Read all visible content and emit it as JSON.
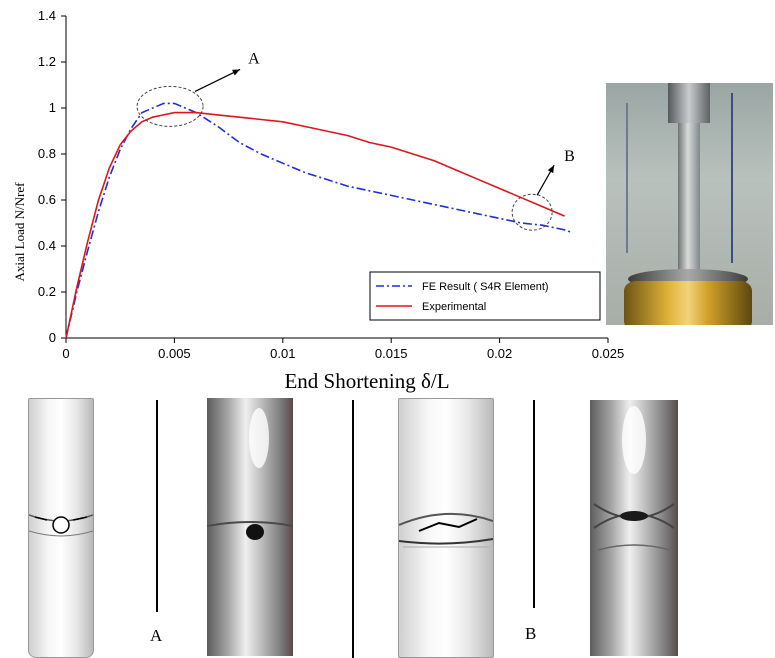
{
  "chart_data": {
    "type": "line",
    "title": "",
    "xlabel": "End Shortening δ/L",
    "ylabel": "Axial Load N/Nref",
    "xlim": [
      0,
      0.025
    ],
    "ylim": [
      0,
      1.4
    ],
    "x_ticks": [
      "0",
      "0.005",
      "0.01",
      "0.015",
      "0.02",
      "0.025"
    ],
    "y_ticks": [
      "0",
      "0.2",
      "0.4",
      "0.6",
      "0.8",
      "1",
      "1.2",
      "1.4"
    ],
    "grid": false,
    "legend_position": "bottom-right",
    "series": [
      {
        "name": "FE Result ( S4R Element)",
        "color": "#1f2fd8",
        "style": "dash-dot",
        "points": [
          [
            0,
            0
          ],
          [
            0.0005,
            0.2
          ],
          [
            0.001,
            0.38
          ],
          [
            0.0015,
            0.55
          ],
          [
            0.002,
            0.7
          ],
          [
            0.0025,
            0.82
          ],
          [
            0.003,
            0.91
          ],
          [
            0.0035,
            0.98
          ],
          [
            0.004,
            1.0
          ],
          [
            0.0045,
            1.02
          ],
          [
            0.005,
            1.02
          ],
          [
            0.0055,
            1.0
          ],
          [
            0.006,
            0.98
          ],
          [
            0.007,
            0.92
          ],
          [
            0.008,
            0.85
          ],
          [
            0.009,
            0.8
          ],
          [
            0.01,
            0.76
          ],
          [
            0.011,
            0.72
          ],
          [
            0.012,
            0.69
          ],
          [
            0.013,
            0.66
          ],
          [
            0.014,
            0.64
          ],
          [
            0.015,
            0.62
          ],
          [
            0.016,
            0.6
          ],
          [
            0.017,
            0.58
          ],
          [
            0.018,
            0.56
          ],
          [
            0.019,
            0.54
          ],
          [
            0.02,
            0.52
          ],
          [
            0.021,
            0.5
          ],
          [
            0.022,
            0.49
          ],
          [
            0.023,
            0.47
          ],
          [
            0.0233,
            0.46
          ]
        ]
      },
      {
        "name": "Experimental",
        "color": "#e0151b",
        "style": "solid",
        "points": [
          [
            0,
            0
          ],
          [
            0.0005,
            0.22
          ],
          [
            0.001,
            0.42
          ],
          [
            0.0015,
            0.6
          ],
          [
            0.002,
            0.74
          ],
          [
            0.0025,
            0.84
          ],
          [
            0.003,
            0.9
          ],
          [
            0.0035,
            0.94
          ],
          [
            0.004,
            0.96
          ],
          [
            0.0045,
            0.97
          ],
          [
            0.005,
            0.98
          ],
          [
            0.006,
            0.98
          ],
          [
            0.007,
            0.97
          ],
          [
            0.008,
            0.96
          ],
          [
            0.009,
            0.95
          ],
          [
            0.01,
            0.94
          ],
          [
            0.011,
            0.92
          ],
          [
            0.012,
            0.9
          ],
          [
            0.013,
            0.88
          ],
          [
            0.014,
            0.85
          ],
          [
            0.015,
            0.83
          ],
          [
            0.016,
            0.8
          ],
          [
            0.017,
            0.77
          ],
          [
            0.018,
            0.73
          ],
          [
            0.019,
            0.69
          ],
          [
            0.02,
            0.65
          ],
          [
            0.021,
            0.61
          ],
          [
            0.022,
            0.57
          ],
          [
            0.023,
            0.53
          ]
        ]
      }
    ],
    "annotations": [
      {
        "label": "A",
        "at": [
          0.0048,
          1.02
        ]
      },
      {
        "label": "B",
        "at": [
          0.0215,
          0.56
        ]
      }
    ]
  },
  "panel_labels": {
    "a": "A",
    "b": "B"
  }
}
